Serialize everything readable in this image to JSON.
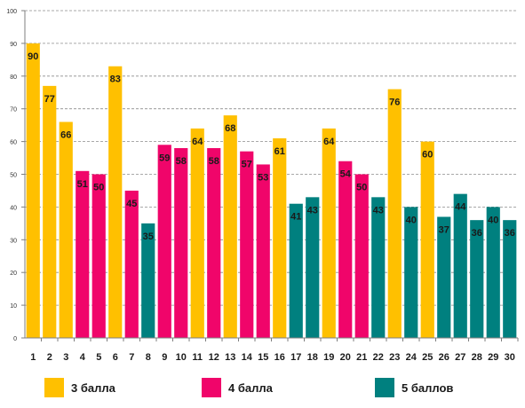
{
  "colors": {
    "3": "#FFC000",
    "4": "#F0056A",
    "5": "#00807F"
  },
  "chart_data": {
    "type": "bar",
    "title": "",
    "xlabel": "",
    "ylabel": "",
    "ylim": [
      0,
      100
    ],
    "yticks": [
      0,
      10,
      20,
      30,
      40,
      50,
      60,
      70,
      80,
      90,
      100
    ],
    "grid": true,
    "legend_position": "bottom",
    "categories": [
      "1",
      "2",
      "3",
      "4",
      "5",
      "6",
      "7",
      "8",
      "9",
      "10",
      "11",
      "12",
      "13",
      "14",
      "15",
      "16",
      "17",
      "18",
      "19",
      "20",
      "21",
      "22",
      "23",
      "24",
      "25",
      "26",
      "27",
      "28",
      "29",
      "30"
    ],
    "values": [
      90,
      77,
      66,
      51,
      50,
      83,
      45,
      35,
      59,
      58,
      64,
      58,
      68,
      57,
      53,
      61,
      41,
      43,
      64,
      54,
      50,
      43,
      76,
      40,
      60,
      37,
      44,
      36,
      40,
      36
    ],
    "grade": [
      3,
      3,
      3,
      4,
      4,
      3,
      4,
      5,
      4,
      4,
      3,
      4,
      3,
      4,
      4,
      3,
      5,
      5,
      3,
      4,
      4,
      5,
      3,
      5,
      3,
      5,
      5,
      5,
      5,
      5
    ],
    "legend": [
      {
        "grade": "3",
        "label": "3 балла"
      },
      {
        "grade": "4",
        "label": "4 балла"
      },
      {
        "grade": "5",
        "label": "5 баллов"
      }
    ]
  }
}
